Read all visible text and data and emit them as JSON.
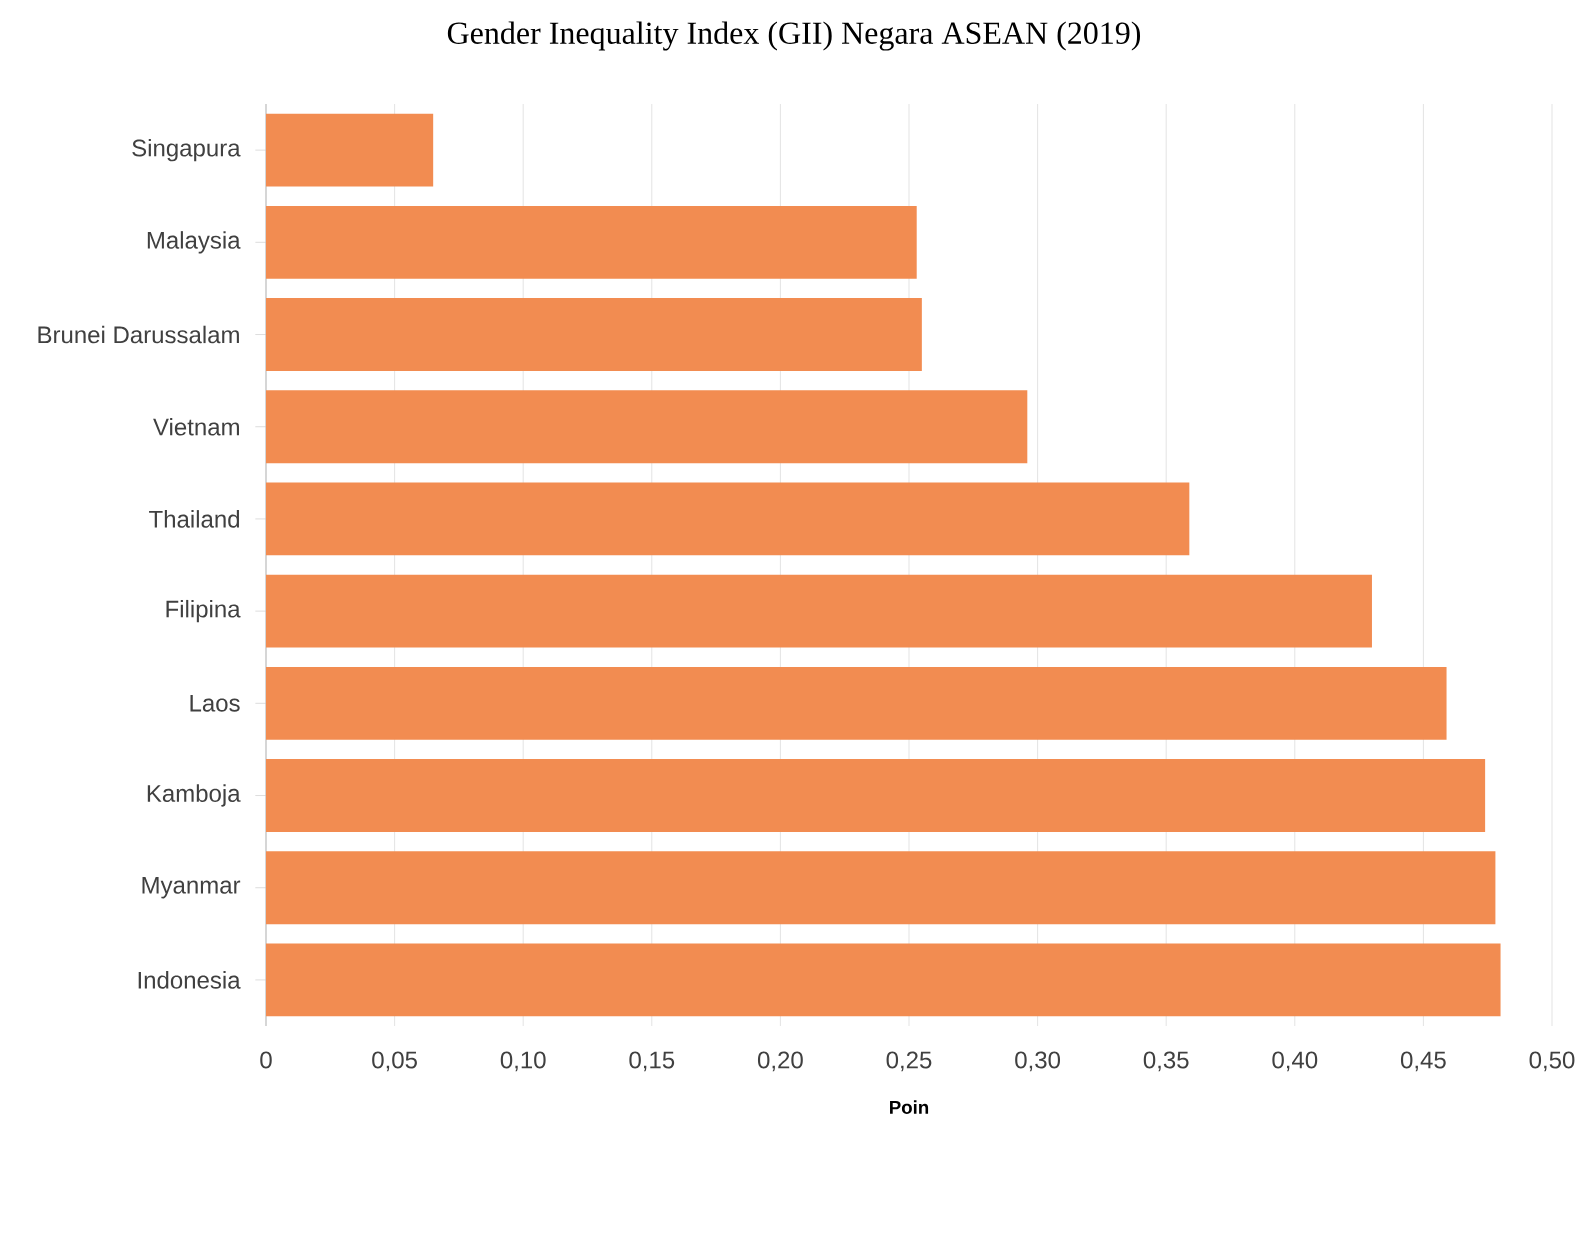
{
  "chart_data": {
    "type": "bar",
    "orientation": "horizontal",
    "title": "Gender Inequality Index (GII) Negara ASEAN (2019)",
    "xlabel": "Poin",
    "categories": [
      "Singapura",
      "Malaysia",
      "Brunei Darussalam",
      "Vietnam",
      "Thailand",
      "Filipina",
      "Laos",
      "Kamboja",
      "Myanmar",
      "Indonesia"
    ],
    "values": [
      0.065,
      0.253,
      0.255,
      0.296,
      0.359,
      0.43,
      0.459,
      0.474,
      0.478,
      0.48
    ],
    "color": "#f28c51",
    "xlim": [
      0,
      0.5
    ],
    "xticks": [
      0,
      {
        "value": 0.05,
        "label": "0,05"
      },
      {
        "value": 0.1,
        "label": "0,10"
      },
      {
        "value": 0.15,
        "label": "0,15"
      },
      {
        "value": 0.2,
        "label": "0,20"
      },
      {
        "value": 0.25,
        "label": "0,25"
      },
      {
        "value": 0.3,
        "label": "0,30"
      },
      {
        "value": 0.35,
        "label": "0,35"
      },
      {
        "value": 0.4,
        "label": "0,40"
      },
      {
        "value": 0.45,
        "label": "0,45"
      },
      {
        "value": 0.5,
        "label": "0,50"
      }
    ],
    "grid": "x"
  }
}
